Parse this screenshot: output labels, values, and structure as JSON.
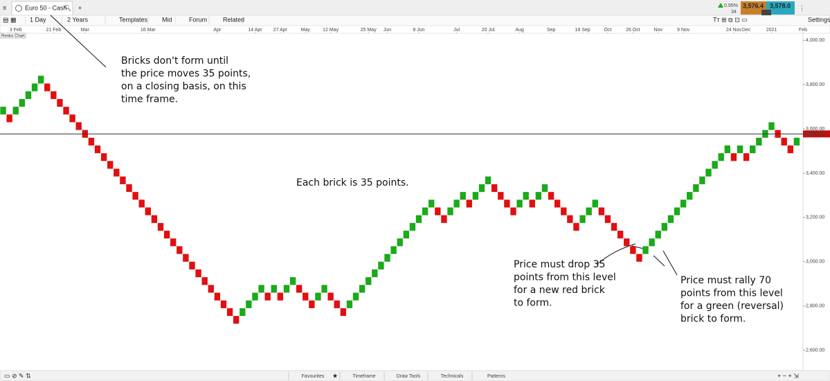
{
  "app": {
    "tab": "Euro 50 - Cash",
    "toolbar": [
      "1 Day",
      "2 Years",
      "Templates",
      "Mid",
      "Forum",
      "Related"
    ],
    "change": "0.95%",
    "change_points": "34",
    "sell": "3,576.4",
    "spread": "1.6",
    "buy": "3,578.0",
    "settings": "Settings",
    "chart_label": "Renko Chart",
    "bottom_tabs": [
      "Favourites",
      "Timeframe",
      "Draw Tools",
      "Technicals",
      "Patterns"
    ]
  },
  "chart_data": {
    "type": "renko",
    "brick_size": 35,
    "up_color": "#1aaa1a",
    "down_color": "#e01010",
    "values": [
      3665,
      3630,
      3665,
      3700,
      3735,
      3770,
      3805,
      3770,
      3735,
      3700,
      3665,
      3630,
      3595,
      3560,
      3525,
      3490,
      3455,
      3420,
      3385,
      3350,
      3315,
      3280,
      3245,
      3210,
      3175,
      3140,
      3105,
      3070,
      3035,
      3000,
      2965,
      2930,
      2895,
      2860,
      2825,
      2790,
      2755,
      2720,
      2755,
      2790,
      2825,
      2860,
      2825,
      2860,
      2825,
      2860,
      2895,
      2860,
      2825,
      2790,
      2825,
      2860,
      2825,
      2790,
      2755,
      2790,
      2825,
      2860,
      2895,
      2930,
      2965,
      3000,
      3035,
      3070,
      3105,
      3140,
      3175,
      3210,
      3245,
      3210,
      3175,
      3210,
      3245,
      3280,
      3245,
      3280,
      3315,
      3350,
      3315,
      3280,
      3245,
      3210,
      3245,
      3280,
      3245,
      3280,
      3315,
      3280,
      3245,
      3210,
      3175,
      3140,
      3175,
      3210,
      3245,
      3210,
      3175,
      3140,
      3105,
      3070,
      3035,
      3000,
      3035,
      3070,
      3105,
      3140,
      3175,
      3210,
      3245,
      3280,
      3315,
      3350,
      3385,
      3420,
      3455,
      3490,
      3455,
      3490,
      3455,
      3490,
      3525,
      3560,
      3595,
      3560,
      3525,
      3490,
      3525
    ],
    "xlim": [
      -0.5,
      127
    ],
    "xticks": [
      {
        "value": 2,
        "label": "3 Feb"
      },
      {
        "value": 8,
        "label": "21 Feb"
      },
      {
        "value": 13,
        "label": "Mar"
      },
      {
        "value": 23,
        "label": "16 Mar"
      },
      {
        "value": 34,
        "label": "Apr"
      },
      {
        "value": 40,
        "label": "14 Apr"
      },
      {
        "value": 44,
        "label": "27 Apr"
      },
      {
        "value": 48,
        "label": "May"
      },
      {
        "value": 52,
        "label": "12 May"
      },
      {
        "value": 58,
        "label": "25 May"
      },
      {
        "value": 61,
        "label": "Jun"
      },
      {
        "value": 66,
        "label": "8 Jun"
      },
      {
        "value": 72,
        "label": "Jul"
      },
      {
        "value": 77,
        "label": "20 Jul"
      },
      {
        "value": 82,
        "label": "Aug"
      },
      {
        "value": 87,
        "label": "Sep"
      },
      {
        "value": 92,
        "label": "18 Sep"
      },
      {
        "value": 96,
        "label": "Oct"
      },
      {
        "value": 100,
        "label": "26 Oct"
      },
      {
        "value": 104,
        "label": "Nov"
      },
      {
        "value": 108,
        "label": "9 Nov"
      },
      {
        "value": 116,
        "label": "24 Nov"
      },
      {
        "value": 118,
        "label": "Dec"
      },
      {
        "value": 122,
        "label": "2021"
      },
      {
        "value": 127,
        "label": "Feb"
      }
    ],
    "ylim": [
      2508,
      4032
    ],
    "yticks": [
      {
        "value": 2600,
        "label": "2,600.00"
      },
      {
        "value": 2800,
        "label": "2,800.00"
      },
      {
        "value": 3000,
        "label": "3,000.00"
      },
      {
        "value": 3200,
        "label": "3,200.00"
      },
      {
        "value": 3400,
        "label": "3,400.00"
      },
      {
        "value": 3600,
        "label": "3,600.00"
      },
      {
        "value": 3800,
        "label": "3,800.00"
      },
      {
        "value": 4000,
        "label": "4,000.00"
      }
    ],
    "price_line": {
      "value": 3577.2,
      "label": "3,577.20"
    },
    "annotations": [
      [
        "Bricks don't form until",
        "the price moves 35 points,",
        "on a closing basis, on this",
        "time frame."
      ],
      [
        "Each brick is 35 points."
      ],
      [
        "Price must drop 35",
        "points from this level",
        "for a new red brick",
        "to form."
      ],
      [
        "Price must rally 70",
        "points from this level",
        "for a green (reversal)",
        "brick to form."
      ]
    ]
  }
}
